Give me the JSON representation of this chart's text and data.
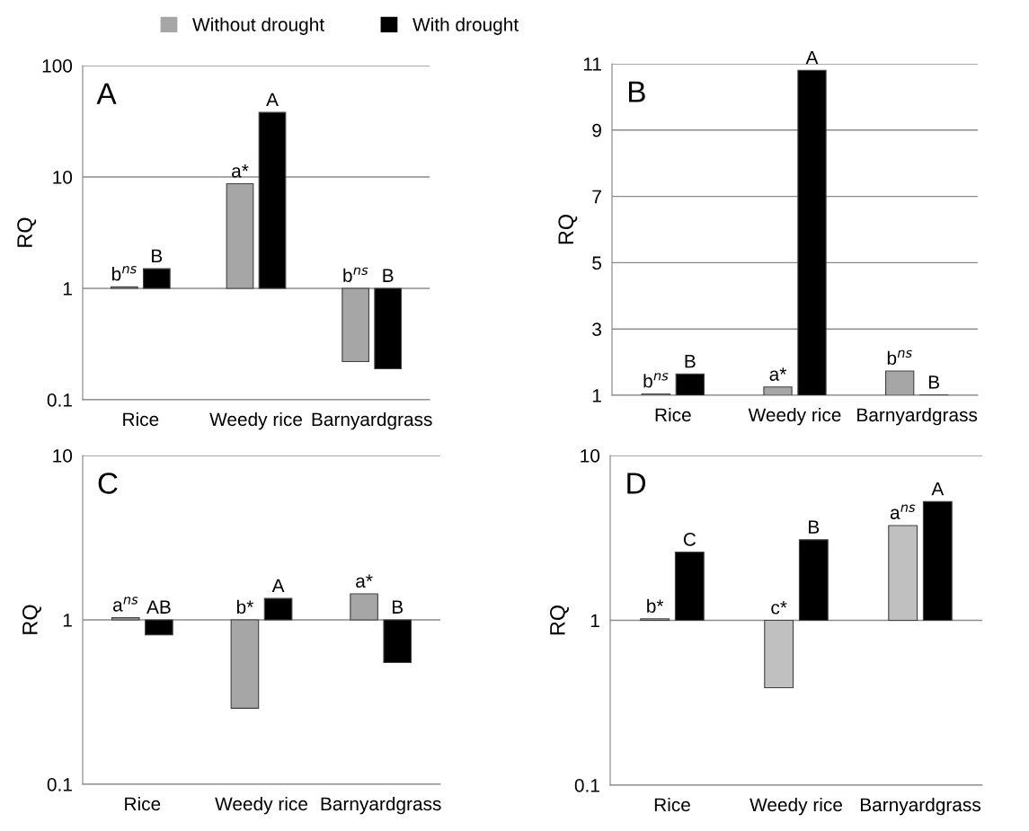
{
  "chart_data": [
    {
      "type": "bar",
      "title": "A",
      "ylabel": "RQ",
      "categories": [
        "Rice",
        "Weedy rice",
        "Barnyardgrass"
      ],
      "log": true,
      "ylim": [
        0.1,
        100
      ],
      "yticks": [
        0.1,
        1,
        10,
        100
      ],
      "grid": "y",
      "legend": "top",
      "series": [
        {
          "name": "Without drought",
          "color": "#a6a6a6",
          "base": [
            1,
            1,
            1
          ],
          "values": [
            0.03,
            7.7,
            -0.78
          ],
          "value_labels": [
            "b$^{ns}$",
            "a*",
            "b$^{ns}$"
          ]
        },
        {
          "name": "With drought",
          "color": "#000000",
          "base": [
            1,
            1,
            1
          ],
          "values": [
            0.5,
            37,
            -0.81
          ],
          "value_labels": [
            "B",
            "A",
            "B"
          ]
        }
      ]
    },
    {
      "type": "bar",
      "title": "B",
      "ylabel": "RQ",
      "categories": [
        "Rice",
        "Weedy rice",
        "Barnyardgrass"
      ],
      "ylim": [
        1,
        11
      ],
      "yticks": [
        1,
        3,
        5,
        7,
        9,
        11
      ],
      "grid": "y",
      "series": [
        {
          "color": "#a6a6a6",
          "values": [
            1.04,
            1.25,
            1.73
          ],
          "value_labels": [
            "b$^{ns}$",
            "a*",
            "b$^{ns}$"
          ]
        },
        {
          "color": "#000000",
          "values": [
            1.64,
            10.8,
            1.01
          ],
          "value_labels": [
            "B",
            "A",
            "B"
          ]
        }
      ]
    },
    {
      "type": "bar",
      "title": "C",
      "ylabel": "RQ",
      "categories": [
        "Rice",
        "Weedy rice",
        "Barnyardgrass"
      ],
      "log": true,
      "ylim": [
        0.1,
        10
      ],
      "yticks": [
        0.1,
        1,
        10
      ],
      "grid": "y",
      "series": [
        {
          "color": "#a6a6a6",
          "base": [
            1,
            1,
            1
          ],
          "values": [
            0.03,
            -0.71,
            0.44
          ],
          "value_labels": [
            "a$^{ns}$",
            "b*",
            "a*"
          ]
        },
        {
          "color": "#000000",
          "base": [
            1,
            1,
            1
          ],
          "values": [
            -0.19,
            0.35,
            -0.45
          ],
          "value_labels": [
            "AB",
            "A",
            "B"
          ]
        }
      ]
    },
    {
      "type": "bar",
      "title": "D",
      "ylabel": "RQ",
      "categories": [
        "Rice",
        "Weedy rice",
        "Barnyardgrass"
      ],
      "log": true,
      "ylim": [
        0.1,
        10
      ],
      "yticks": [
        0.1,
        1,
        10
      ],
      "grid": "y",
      "series": [
        {
          "color": "#c0c0c0",
          "base": [
            1,
            1,
            1
          ],
          "values": [
            0.02,
            -0.61,
            2.76
          ],
          "value_labels": [
            "b*",
            "c*",
            "a$^{ns}$"
          ]
        },
        {
          "color": "#000000",
          "base": [
            1,
            1,
            1
          ],
          "values": [
            1.59,
            2.08,
            4.25
          ],
          "value_labels": [
            "C",
            "B",
            "A"
          ]
        }
      ]
    }
  ]
}
